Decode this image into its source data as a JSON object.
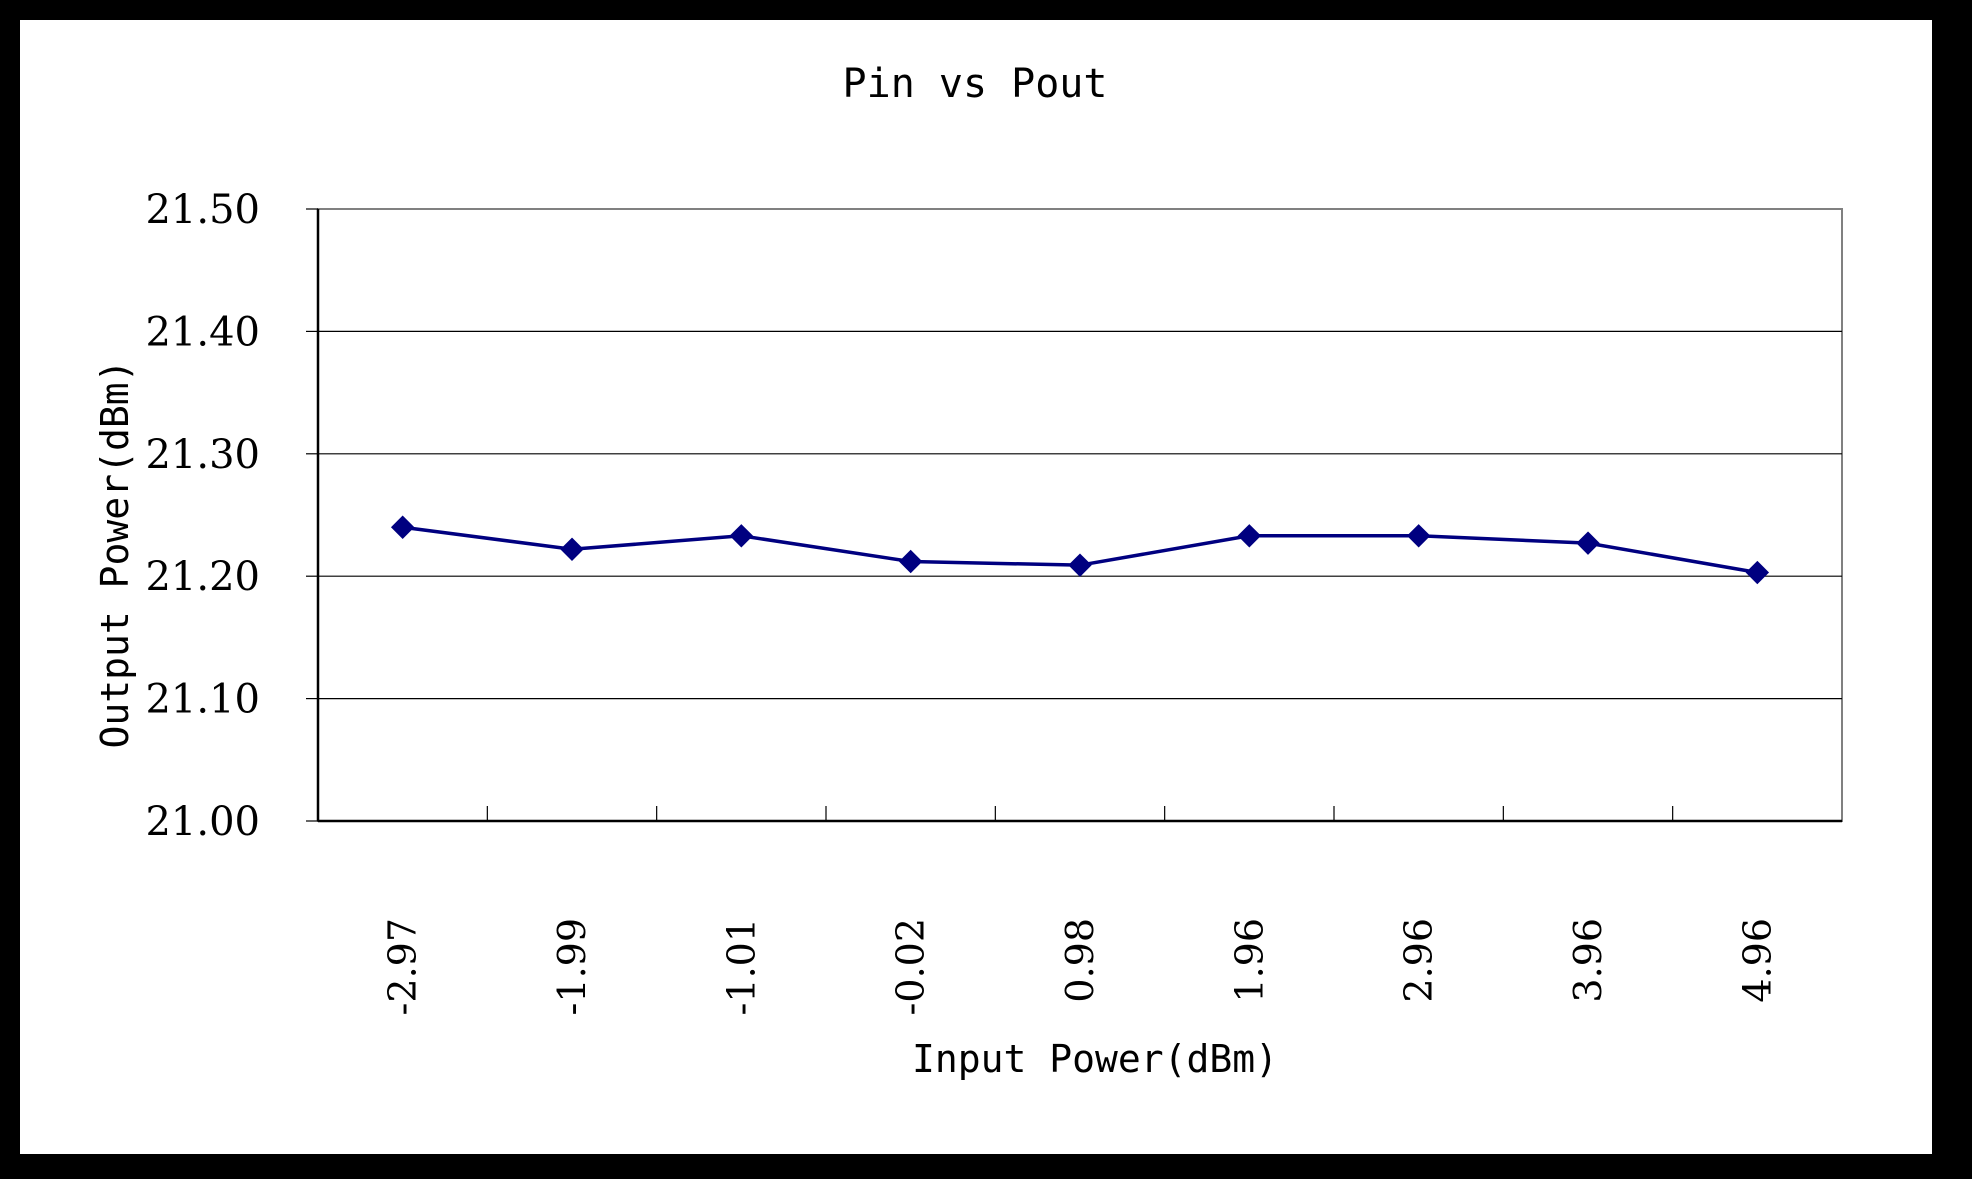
{
  "colors": {
    "background": "#000000",
    "plot_background": "#ffffff",
    "series": "#000080",
    "gridline": "#000000"
  },
  "chart_data": {
    "type": "line",
    "title": "Pin vs Pout",
    "xlabel": "Input Power(dBm)",
    "ylabel": "Output Power(dBm)",
    "categories": [
      "-2.97",
      "-1.99",
      "-1.01",
      "-0.02",
      "0.98",
      "1.96",
      "2.96",
      "3.96",
      "4.96"
    ],
    "series": [
      {
        "values": [
          21.24,
          21.222,
          21.233,
          21.212,
          21.209,
          21.233,
          21.233,
          21.227,
          21.203
        ],
        "marker": "diamond",
        "color": "#000080"
      }
    ],
    "ylim": [
      21.0,
      21.5
    ],
    "yticks": [
      "21.00",
      "21.10",
      "21.20",
      "21.30",
      "21.40",
      "21.50"
    ],
    "grid": "horizontal",
    "legend": "none"
  }
}
